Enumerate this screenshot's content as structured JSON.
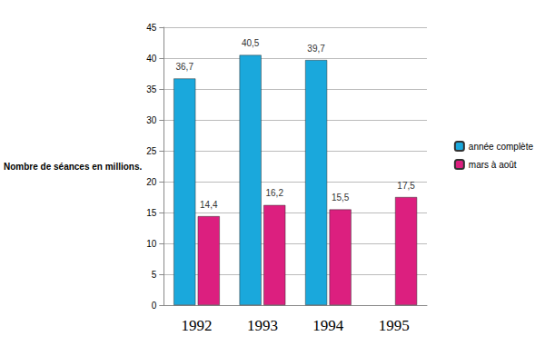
{
  "chart_data": {
    "type": "bar",
    "y_label": "Nombre de séances en millions.",
    "categories": [
      "1992",
      "1993",
      "1994",
      "1995"
    ],
    "series": [
      {
        "name": "année complète",
        "color": "#1aa8dc",
        "values": [
          36.7,
          40.5,
          39.7,
          null
        ],
        "value_labels": [
          "36,7",
          "40,5",
          "39,7",
          null
        ]
      },
      {
        "name": "mars à août",
        "color": "#dc1f7f",
        "values": [
          14.4,
          16.2,
          15.5,
          17.5
        ],
        "value_labels": [
          "14,4",
          "16,2",
          "15,5",
          "17,5"
        ]
      }
    ],
    "ylim": [
      0,
      45
    ],
    "yticks": [
      0,
      5,
      10,
      15,
      20,
      25,
      30,
      35,
      40,
      45
    ],
    "grid": true,
    "legend": "right",
    "data_labels": true
  }
}
